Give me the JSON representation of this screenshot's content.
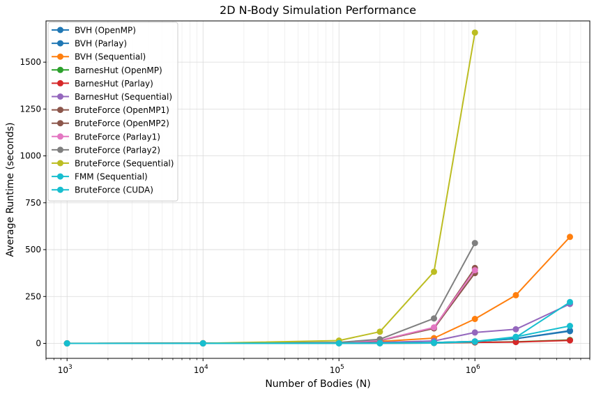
{
  "chart_data": {
    "type": "line",
    "title": "2D N-Body Simulation Performance",
    "xlabel": "Number of Bodies (N)",
    "ylabel": "Average Runtime (seconds)",
    "xscale": "log",
    "xlim": [
      700,
      7000000
    ],
    "ylim": [
      -80,
      1720
    ],
    "x_ticks": [
      {
        "value": 1000,
        "base": "10",
        "exp": "3"
      },
      {
        "value": 10000,
        "base": "10",
        "exp": "4"
      },
      {
        "value": 100000,
        "base": "10",
        "exp": "5"
      },
      {
        "value": 1000000,
        "base": "10",
        "exp": "6"
      }
    ],
    "y_ticks": [
      {
        "value": 0,
        "label": "0"
      },
      {
        "value": 250,
        "label": "250"
      },
      {
        "value": 500,
        "label": "500"
      },
      {
        "value": 750,
        "label": "750"
      },
      {
        "value": 1000,
        "label": "1000"
      },
      {
        "value": 1250,
        "label": "1250"
      },
      {
        "value": 1500,
        "label": "1500"
      }
    ],
    "grid": true,
    "legend_position": "top-left",
    "series": [
      {
        "name": "BVH (OpenMP)",
        "color": "#1f77b4",
        "x": [
          1000,
          10000,
          100000,
          200000,
          500000,
          1000000,
          2000000,
          5000000
        ],
        "y": [
          0.1,
          0.3,
          1,
          2,
          4,
          10,
          25,
          68
        ]
      },
      {
        "name": "BVH (Parlay)",
        "color": "#1f77b4",
        "x": [
          1000,
          10000,
          100000,
          200000,
          500000,
          1000000,
          2000000,
          5000000
        ],
        "y": [
          0.1,
          0.3,
          1,
          2,
          4,
          10,
          25,
          65
        ]
      },
      {
        "name": "BVH (Sequential)",
        "color": "#ff7f0e",
        "x": [
          1000,
          10000,
          100000,
          200000,
          500000,
          1000000,
          2000000,
          5000000
        ],
        "y": [
          0.2,
          1,
          4,
          10,
          28,
          130,
          257,
          568
        ]
      },
      {
        "name": "BarnesHut (OpenMP)",
        "color": "#2ca02c",
        "x": [
          1000,
          10000,
          100000,
          200000,
          500000,
          1000000,
          2000000,
          5000000
        ],
        "y": [
          0.1,
          0.2,
          1,
          1,
          2,
          5,
          8,
          18
        ]
      },
      {
        "name": "BarnesHut (Parlay)",
        "color": "#d62728",
        "x": [
          1000,
          10000,
          100000,
          200000,
          500000,
          1000000,
          2000000,
          5000000
        ],
        "y": [
          0.1,
          0.2,
          1,
          1,
          2,
          5,
          7,
          16
        ]
      },
      {
        "name": "BarnesHut (Sequential)",
        "color": "#9467bd",
        "x": [
          1000,
          10000,
          100000,
          200000,
          500000,
          1000000,
          2000000,
          5000000
        ],
        "y": [
          0.1,
          0.5,
          2,
          5,
          13,
          58,
          75,
          210
        ]
      },
      {
        "name": "BruteForce (OpenMP1)",
        "color": "#8c564b",
        "x": [
          1000,
          10000,
          100000,
          200000,
          500000,
          1000000
        ],
        "y": [
          0,
          0.1,
          4,
          15,
          80,
          375
        ]
      },
      {
        "name": "BruteForce (OpenMP2)",
        "color": "#8c564b",
        "x": [
          1000,
          10000,
          100000,
          200000,
          500000,
          1000000
        ],
        "y": [
          0,
          0.1,
          4,
          15,
          82,
          402
        ]
      },
      {
        "name": "BruteForce (Parlay1)",
        "color": "#e377c2",
        "x": [
          1000,
          10000,
          100000,
          200000,
          500000,
          1000000
        ],
        "y": [
          0,
          0.1,
          4,
          16,
          85,
          390
        ]
      },
      {
        "name": "BruteForce (Parlay2)",
        "color": "#7f7f7f",
        "x": [
          1000,
          10000,
          100000,
          200000,
          500000,
          1000000
        ],
        "y": [
          0,
          0.1,
          5,
          22,
          133,
          535
        ]
      },
      {
        "name": "BruteForce (Sequential)",
        "color": "#bcbd22",
        "x": [
          1000,
          10000,
          100000,
          200000,
          500000,
          1000000
        ],
        "y": [
          0,
          0.2,
          15,
          62,
          382,
          1658
        ]
      },
      {
        "name": "FMM (Sequential)",
        "color": "#17becf",
        "x": [
          1000,
          10000,
          100000,
          200000,
          500000,
          1000000,
          2000000,
          5000000
        ],
        "y": [
          0.1,
          0.3,
          1,
          2,
          4,
          10,
          35,
          93
        ]
      },
      {
        "name": "BruteForce (CUDA)",
        "color": "#17becf",
        "x": [
          1000,
          10000,
          100000,
          200000,
          500000,
          1000000,
          2000000,
          5000000
        ],
        "y": [
          0.1,
          0.1,
          0.2,
          0.5,
          2,
          8,
          32,
          220
        ]
      }
    ]
  }
}
